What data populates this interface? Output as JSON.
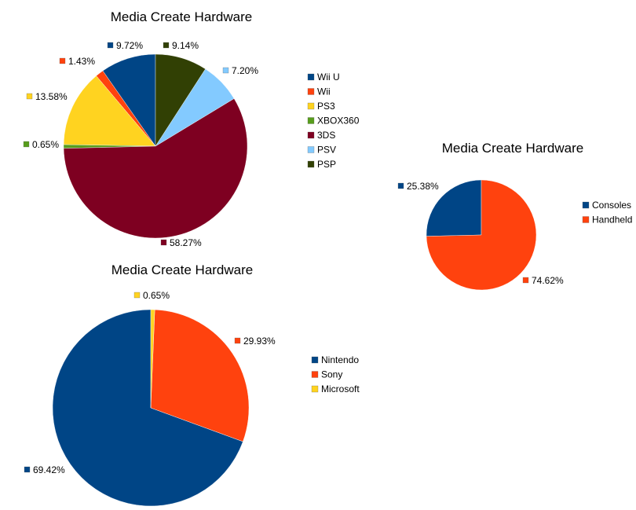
{
  "chart_data": [
    {
      "type": "pie",
      "title": "Media Create Hardware",
      "legend_position": "right",
      "slices": [
        {
          "name": "Wii U",
          "value": 9.72,
          "label": "9.72%",
          "color": "#004586"
        },
        {
          "name": "Wii",
          "value": 1.43,
          "label": "1.43%",
          "color": "#ff420e"
        },
        {
          "name": "PS3",
          "value": 13.58,
          "label": "13.58%",
          "color": "#ffd320"
        },
        {
          "name": "XBOX360",
          "value": 0.65,
          "label": "0.65%",
          "color": "#579d1c"
        },
        {
          "name": "3DS",
          "value": 58.27,
          "label": "58.27%",
          "color": "#7e0021"
        },
        {
          "name": "PSV",
          "value": 7.2,
          "label": "7.20%",
          "color": "#83caff"
        },
        {
          "name": "PSP",
          "value": 9.14,
          "label": "9.14%",
          "color": "#314004"
        }
      ]
    },
    {
      "type": "pie",
      "title": "Media Create Hardware",
      "legend_position": "right",
      "slices": [
        {
          "name": "Consoles",
          "value": 25.38,
          "label": "25.38%",
          "color": "#004586"
        },
        {
          "name": "Handheld",
          "value": 74.62,
          "label": "74.62%",
          "color": "#ff420e"
        }
      ]
    },
    {
      "type": "pie",
      "title": "Media Create Hardware",
      "legend_position": "right",
      "slices": [
        {
          "name": "Nintendo",
          "value": 69.42,
          "label": "69.42%",
          "color": "#004586"
        },
        {
          "name": "Sony",
          "value": 29.93,
          "label": "29.93%",
          "color": "#ff420e"
        },
        {
          "name": "Microsoft",
          "value": 0.65,
          "label": "0.65%",
          "color": "#ffd320"
        }
      ]
    }
  ]
}
